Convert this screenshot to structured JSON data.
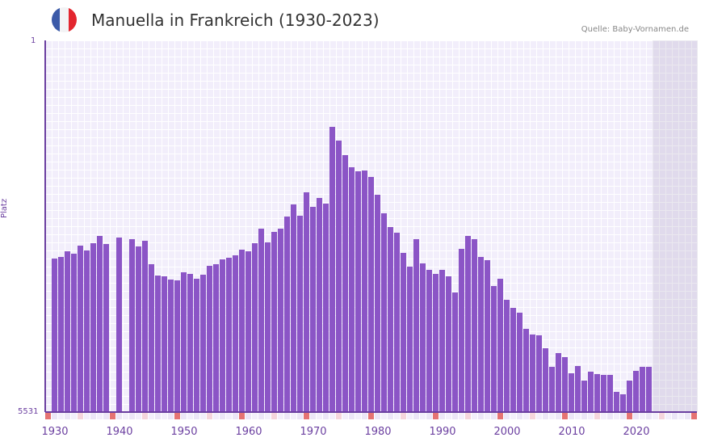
{
  "header": {
    "title": "Manuella in Frankreich (1930-2023)",
    "source": "Quelle: Baby-Vornamen.de",
    "flag_icon": "france-flag-icon"
  },
  "colors": {
    "bar": "#8b55c6",
    "axis": "#6b3fa0",
    "grid_bg": "#f2eefb",
    "marker_decade": "#e57373",
    "marker_half": "#f5d5dc"
  },
  "axes": {
    "y_top": "1",
    "y_bottom": "5531",
    "y_title": "Platz"
  },
  "chart_data": {
    "type": "bar",
    "title": "Manuella in Frankreich (1930-2023)",
    "xlabel": "",
    "ylabel": "Platz",
    "ylim": [
      5531,
      1
    ],
    "y_inverted": true,
    "x_ticks": [
      "1930",
      "1940",
      "1950",
      "1960",
      "1970",
      "1980",
      "1990",
      "2000",
      "2010",
      "2020"
    ],
    "x_range": [
      1929,
      2029
    ],
    "future_shaded_from": 2023,
    "categories": [
      1930,
      1931,
      1932,
      1933,
      1934,
      1935,
      1936,
      1937,
      1938,
      1939,
      1940,
      1941,
      1942,
      1943,
      1944,
      1945,
      1946,
      1947,
      1948,
      1949,
      1950,
      1951,
      1952,
      1953,
      1954,
      1955,
      1956,
      1957,
      1958,
      1959,
      1960,
      1961,
      1962,
      1963,
      1964,
      1965,
      1966,
      1967,
      1968,
      1969,
      1970,
      1971,
      1972,
      1973,
      1974,
      1975,
      1976,
      1977,
      1978,
      1979,
      1980,
      1981,
      1982,
      1983,
      1984,
      1985,
      1986,
      1987,
      1988,
      1989,
      1990,
      1991,
      1992,
      1993,
      1994,
      1995,
      1996,
      1997,
      1998,
      1999,
      2000,
      2001,
      2002,
      2003,
      2004,
      2005,
      2006,
      2007,
      2008,
      2009,
      2010,
      2011,
      2012,
      2013,
      2014,
      2015,
      2016,
      2017,
      2018,
      2019,
      2020,
      2021,
      2022
    ],
    "values": [
      3246,
      3222,
      3138,
      3174,
      3053,
      3126,
      3017,
      2909,
      3029,
      null,
      2933,
      null,
      2957,
      3065,
      2981,
      3330,
      3498,
      3510,
      3559,
      3571,
      3451,
      3475,
      3547,
      3487,
      3354,
      3330,
      3258,
      3234,
      3198,
      3114,
      3138,
      3017,
      2801,
      3005,
      2849,
      2801,
      2620,
      2440,
      2608,
      2260,
      2476,
      2344,
      2428,
      1286,
      1491,
      1707,
      1888,
      1948,
      1936,
      2032,
      2296,
      2572,
      2777,
      2861,
      3162,
      3366,
      2957,
      3318,
      3415,
      3475,
      3415,
      3511,
      3751,
      3101,
      2909,
      2957,
      3222,
      3270,
      3655,
      3547,
      3860,
      3980,
      4052,
      4292,
      4376,
      4388,
      4580,
      4857,
      4653,
      4713,
      4953,
      4845,
      5061,
      4929,
      4965,
      4977,
      4977,
      5229,
      5265,
      5061,
      4917,
      4857,
      4857
    ]
  }
}
